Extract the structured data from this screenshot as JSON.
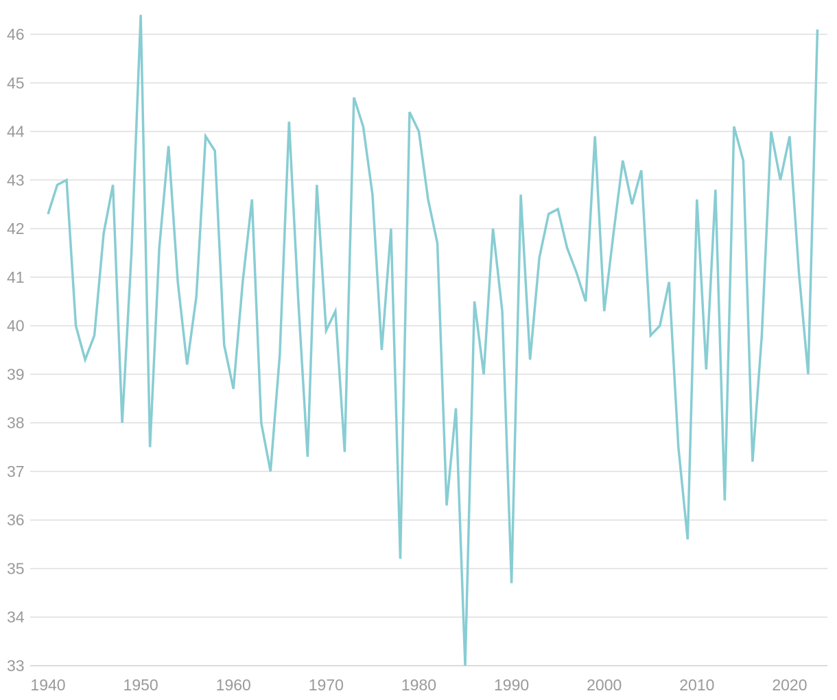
{
  "chart_data": {
    "type": "line",
    "title": "",
    "xlabel": "",
    "ylabel": "",
    "xlim": [
      1939,
      2025
    ],
    "ylim": [
      33,
      46.4
    ],
    "grid": true,
    "legend": "none",
    "colors": {
      "line": "#88cdd3",
      "grid": "#dedede",
      "tick_text": "#9a9a9a"
    },
    "x_ticks": [
      1940,
      1950,
      1960,
      1970,
      1980,
      1990,
      2000,
      2010,
      2020
    ],
    "y_ticks": [
      33,
      34,
      35,
      36,
      37,
      38,
      39,
      40,
      41,
      42,
      43,
      44,
      45,
      46
    ],
    "series": [
      {
        "x": [
          1940,
          1941,
          1942,
          1943,
          1944,
          1945,
          1946,
          1947,
          1948,
          1949,
          1950,
          1951,
          1952,
          1953,
          1954,
          1955,
          1956,
          1957,
          1958,
          1959,
          1960,
          1961,
          1962,
          1963,
          1964,
          1965,
          1966,
          1967,
          1968,
          1969,
          1970,
          1971,
          1972,
          1973,
          1974,
          1975,
          1976,
          1977,
          1978,
          1979,
          1980,
          1981,
          1982,
          1983,
          1984,
          1985,
          1986,
          1987,
          1988,
          1989,
          1990,
          1991,
          1992,
          1993,
          1994,
          1995,
          1996,
          1997,
          1998,
          1999,
          2000,
          2001,
          2002,
          2003,
          2004,
          2005,
          2006,
          2007,
          2008,
          2009,
          2010,
          2011,
          2012,
          2013,
          2014,
          2015,
          2016,
          2017,
          2018,
          2019,
          2020,
          2021,
          2022,
          2023
        ],
        "values": [
          42.3,
          42.9,
          43.0,
          40.0,
          39.3,
          39.8,
          41.9,
          42.9,
          38.0,
          41.5,
          46.4,
          37.5,
          41.6,
          43.7,
          40.9,
          39.2,
          40.6,
          43.9,
          43.6,
          39.6,
          38.7,
          40.9,
          42.6,
          38.0,
          37.0,
          39.4,
          44.2,
          40.5,
          37.3,
          42.9,
          39.9,
          40.3,
          37.4,
          44.7,
          44.1,
          42.7,
          39.5,
          42.0,
          35.2,
          44.4,
          44.0,
          42.6,
          41.7,
          36.3,
          38.3,
          33.0,
          40.5,
          39.0,
          42.0,
          40.3,
          34.7,
          42.7,
          39.3,
          41.4,
          42.3,
          42.4,
          41.6,
          41.1,
          40.5,
          43.9,
          40.3,
          41.9,
          43.4,
          42.5,
          43.2,
          39.8,
          40.0,
          40.9,
          37.5,
          35.6,
          42.6,
          39.1,
          42.8,
          36.4,
          44.1,
          43.4,
          37.2,
          39.8,
          44.0,
          43.0,
          43.9,
          41.1,
          39.0,
          46.1
        ]
      }
    ]
  }
}
